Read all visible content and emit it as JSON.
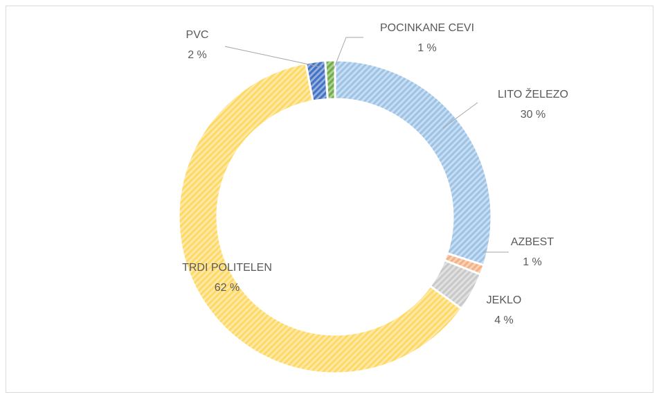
{
  "chart_data": {
    "type": "doughnut",
    "categories": [
      "LITO ŽELEZO",
      "AZBEST",
      "JEKLO",
      "TRDI POLITELEN",
      "PVC",
      "POCINKANE CEVI"
    ],
    "values": [
      30,
      1,
      4,
      62,
      2,
      1
    ],
    "value_labels": [
      "30 %",
      "1 %",
      "4 %",
      "62 %",
      "2 %",
      "1 %"
    ],
    "colors": [
      "#9dc3e6",
      "#f4b183",
      "#c9c9c9",
      "#ffd966",
      "#4472c4",
      "#70ad47"
    ]
  }
}
